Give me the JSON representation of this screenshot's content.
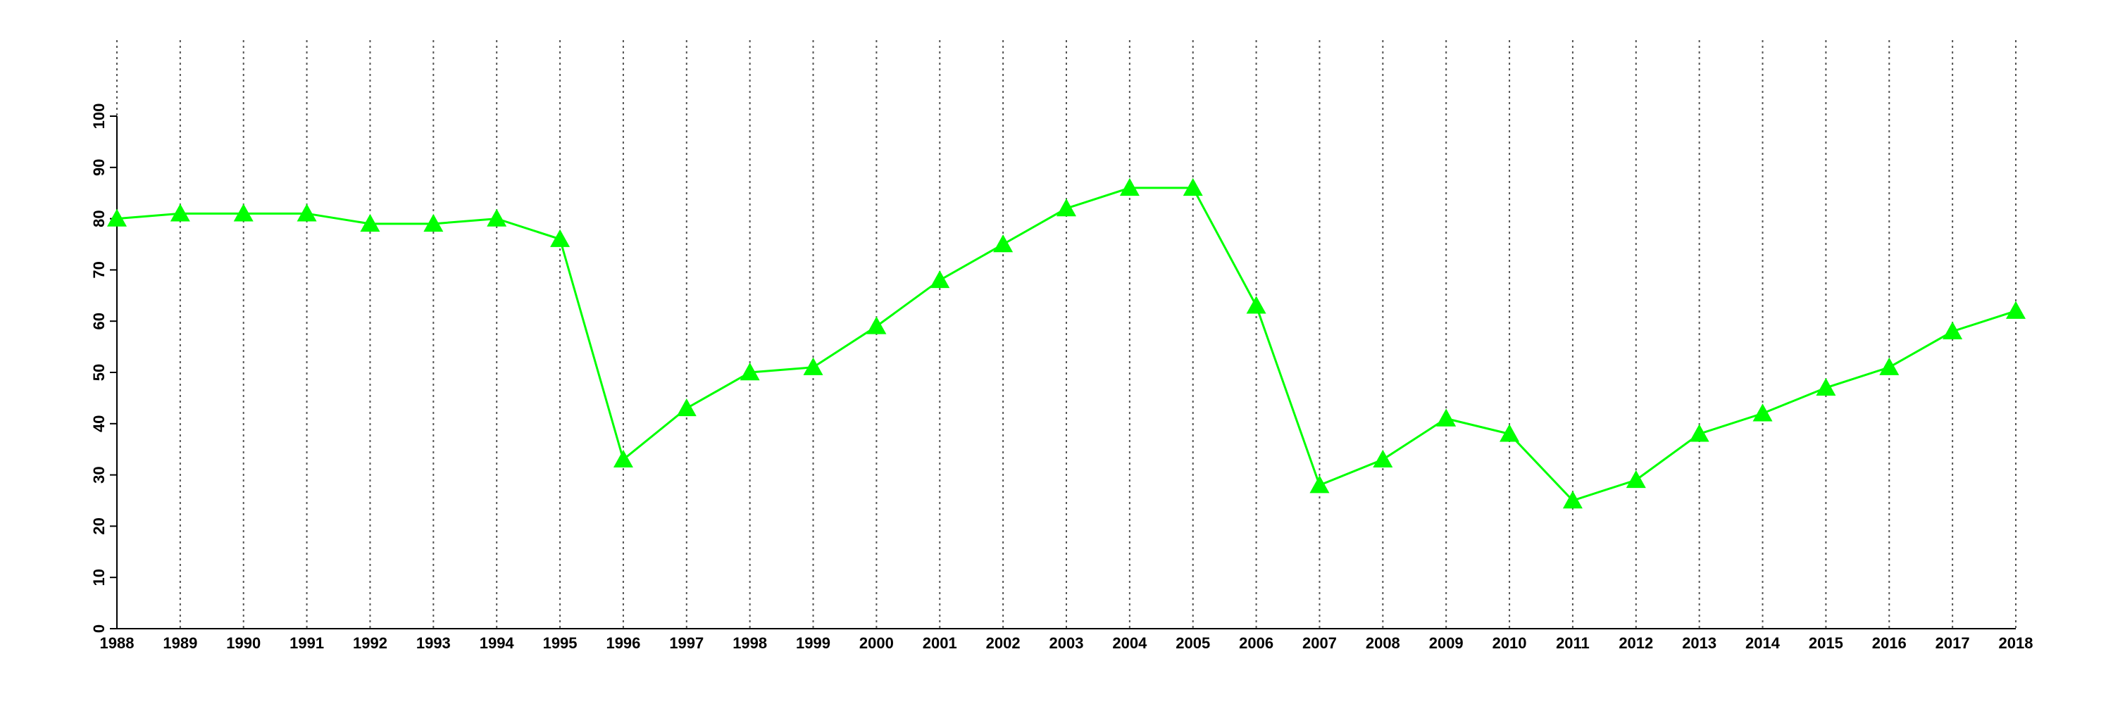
{
  "chart_data": {
    "type": "line",
    "x": [
      1988,
      1989,
      1990,
      1991,
      1992,
      1993,
      1994,
      1995,
      1996,
      1997,
      1998,
      1999,
      2000,
      2001,
      2002,
      2003,
      2004,
      2005,
      2006,
      2007,
      2008,
      2009,
      2010,
      2011,
      2012,
      2013,
      2014,
      2015,
      2016,
      2017,
      2018
    ],
    "y": [
      80,
      81,
      81,
      81,
      79,
      79,
      80,
      76,
      33,
      43,
      50,
      51,
      59,
      68,
      75,
      82,
      86,
      86,
      63,
      28,
      33,
      41,
      38,
      25,
      29,
      38,
      42,
      47,
      51,
      58,
      62
    ],
    "color": "#00ff00",
    "xlim": [
      1988,
      2018
    ],
    "xticks": [
      1988,
      1989,
      1990,
      1991,
      1992,
      1993,
      1994,
      1995,
      1996,
      1997,
      1998,
      1999,
      2000,
      2001,
      2002,
      2003,
      2004,
      2005,
      2006,
      2007,
      2008,
      2009,
      2010,
      2011,
      2012,
      2013,
      2014,
      2015,
      2016,
      2017,
      2018
    ],
    "ylim": [
      0,
      100
    ],
    "yticks": [
      0,
      10,
      20,
      30,
      40,
      50,
      60,
      70,
      80,
      90,
      100
    ],
    "grid": true
  }
}
